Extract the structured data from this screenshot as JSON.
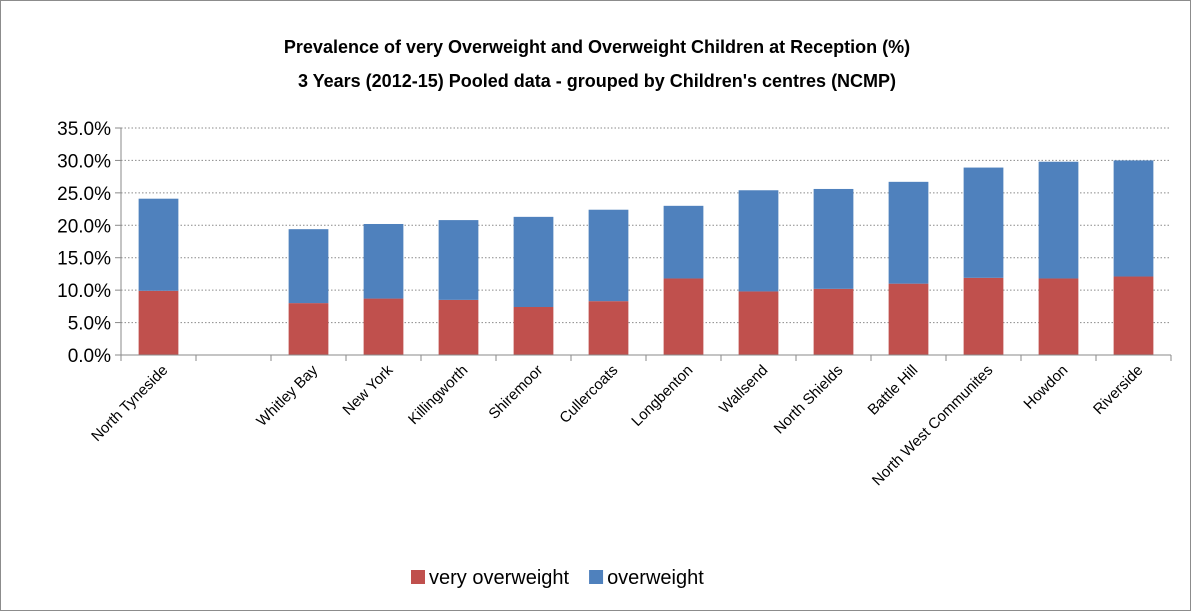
{
  "chart_data": {
    "type": "bar",
    "stacked": true,
    "title": "Prevalence of very Overweight and Overweight Children at Reception (%)",
    "subtitle": "3 Years (2012-15) Pooled data - grouped by Children's centres (NCMP)",
    "categories": [
      "North Tyneside",
      "",
      "Whitley Bay",
      "New York",
      "Killingworth",
      "Shiremoor",
      "Cullercoats",
      "Longbenton",
      "Wallsend",
      "North Shields",
      "Battle Hill",
      "North West Communites",
      "Howdon",
      "Riverside"
    ],
    "series": [
      {
        "name": "very overweight",
        "color": "#c0504d",
        "values": [
          9.9,
          null,
          8.0,
          8.7,
          8.5,
          7.4,
          8.3,
          11.8,
          9.8,
          10.2,
          11.0,
          11.9,
          11.8,
          12.1
        ]
      },
      {
        "name": "overweight",
        "color": "#4f81bd",
        "values": [
          14.2,
          null,
          11.4,
          11.5,
          12.3,
          13.9,
          14.1,
          11.2,
          15.6,
          15.4,
          15.7,
          17.0,
          18.0,
          17.9
        ]
      }
    ],
    "ylim": [
      0,
      35
    ],
    "yticks": [
      "0.0%",
      "5.0%",
      "10.0%",
      "15.0%",
      "20.0%",
      "25.0%",
      "30.0%",
      "35.0%"
    ],
    "ytick_values": [
      0,
      5,
      10,
      15,
      20,
      25,
      30,
      35
    ],
    "xlabel": "",
    "ylabel": "",
    "grid": true,
    "legend_position": "bottom"
  }
}
